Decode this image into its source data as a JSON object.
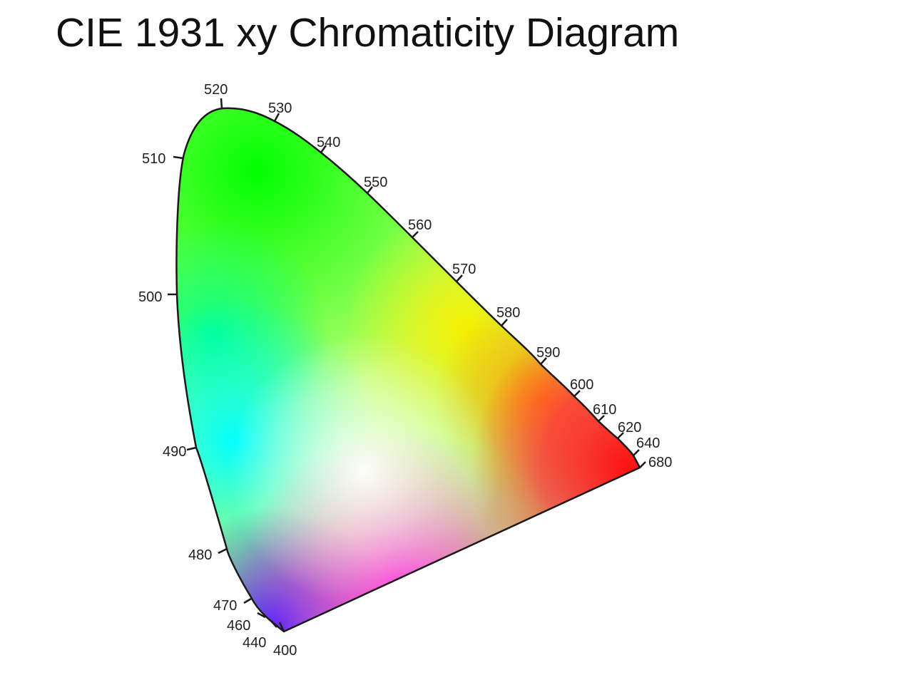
{
  "title": "CIE 1931 xy Chromaticity Diagram",
  "chart_data": {
    "type": "chromaticity-diagram",
    "title": "CIE 1931 xy Chromaticity Diagram",
    "wavelength_labels": [
      "400",
      "440",
      "460",
      "470",
      "480",
      "490",
      "500",
      "510",
      "520",
      "530",
      "540",
      "550",
      "560",
      "570",
      "580",
      "590",
      "600",
      "610",
      "620",
      "640",
      "680"
    ],
    "colors": {
      "outline": "#1a1a1a",
      "green": "#00ff00",
      "yellow": "#f5f000",
      "orange": "#ff9900",
      "red": "#ff1010",
      "magenta": "#ff2adf",
      "blue": "#3a22ff",
      "cyan": "#00ffff",
      "white": "#ffffff"
    }
  }
}
